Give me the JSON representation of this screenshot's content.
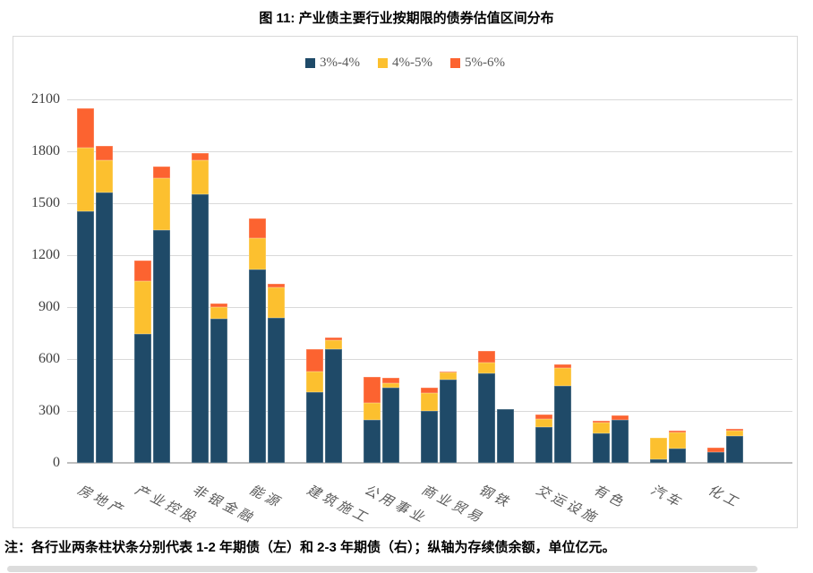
{
  "page": {
    "title": "图 11: 产业债主要行业按期限的债券估值区间分布",
    "note": "注：各行业两条柱状条分别代表 1-2 年期债（左）和 2-3 年期债（右）；纵轴为存续债余额，单位亿元。"
  },
  "chart_data": {
    "type": "bar",
    "stacked": true,
    "orientation": "vertical",
    "title": "图 11: 产业债主要行业按期限的债券估值区间分布",
    "legend_position": "top-center",
    "grid": true,
    "ylim": [
      0,
      2100
    ],
    "yticks": [
      0,
      300,
      600,
      900,
      1200,
      1500,
      1800,
      2100
    ],
    "ylabel": "",
    "xlabel": "",
    "axis_meaning_note": "纵轴为存续债余额，单位亿元",
    "bar_terms": [
      "1-2 年期债（左）",
      "2-3 年期债（右）"
    ],
    "series_labels": [
      "3%-4%",
      "4%-5%",
      "5%-6%"
    ],
    "colors": [
      "#1F4A68",
      "#FCC02F",
      "#FC6330"
    ],
    "categories": [
      "房地产",
      "产业控股",
      "非银金融",
      "能源",
      "建筑施工",
      "公用事业",
      "商业贸易",
      "钢铁",
      "交运设施",
      "有色",
      "汽车",
      "化工"
    ],
    "groups": [
      {
        "category": "房地产",
        "bars": [
          [
            1455,
            365,
            230
          ],
          [
            1560,
            190,
            80
          ]
        ]
      },
      {
        "category": "产业控股",
        "bars": [
          [
            745,
            305,
            120
          ],
          [
            1345,
            300,
            65
          ]
        ]
      },
      {
        "category": "非银金融",
        "bars": [
          [
            1550,
            200,
            40
          ],
          [
            835,
            65,
            20
          ]
        ]
      },
      {
        "category": "能源",
        "bars": [
          [
            1115,
            185,
            110
          ],
          [
            840,
            175,
            20
          ]
        ]
      },
      {
        "category": "建筑施工",
        "bars": [
          [
            410,
            120,
            125
          ],
          [
            655,
            55,
            15
          ]
        ]
      },
      {
        "category": "公用事业",
        "bars": [
          [
            250,
            95,
            150
          ],
          [
            435,
            25,
            30
          ]
        ]
      },
      {
        "category": "商业贸易",
        "bars": [
          [
            300,
            105,
            30
          ],
          [
            480,
            40,
            10
          ]
        ]
      },
      {
        "category": "钢铁",
        "bars": [
          [
            515,
            65,
            65
          ],
          [
            310,
            0,
            0
          ]
        ]
      },
      {
        "category": "交运设施",
        "bars": [
          [
            205,
            50,
            25
          ],
          [
            445,
            105,
            20
          ]
        ]
      },
      {
        "category": "有色",
        "bars": [
          [
            170,
            65,
            10
          ],
          [
            250,
            0,
            25
          ]
        ]
      },
      {
        "category": "汽车",
        "bars": [
          [
            20,
            125,
            0
          ],
          [
            85,
            90,
            10
          ]
        ]
      },
      {
        "category": "化工",
        "bars": [
          [
            60,
            0,
            30
          ],
          [
            155,
            30,
            10
          ]
        ]
      }
    ]
  }
}
